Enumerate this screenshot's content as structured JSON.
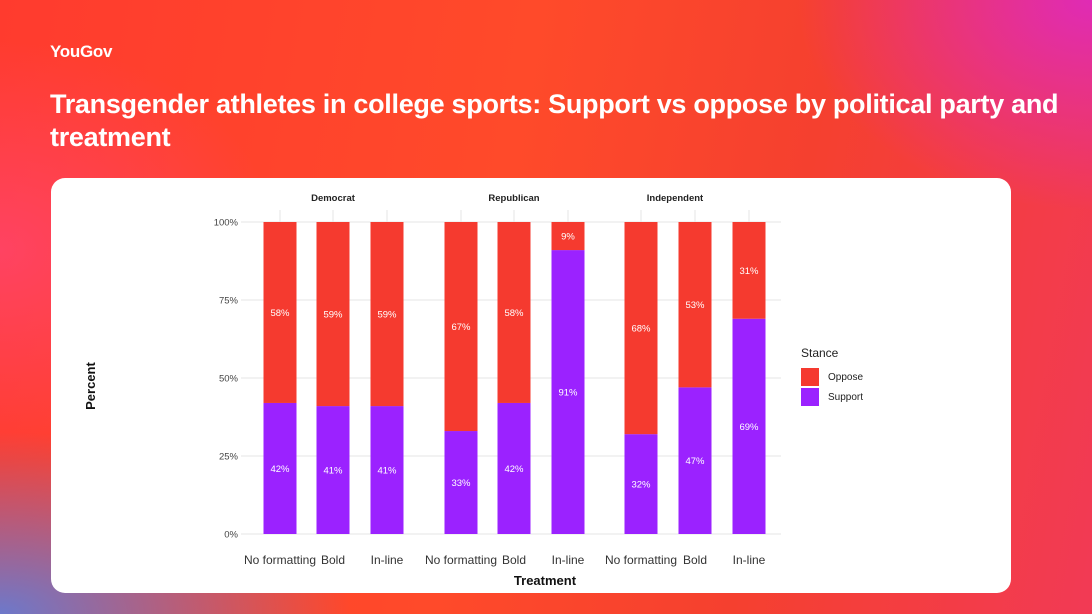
{
  "brand": {
    "logo_text": "YouGov"
  },
  "header": {
    "title": "Transgender athletes in college sports: Support vs oppose by political party and treatment"
  },
  "colors": {
    "oppose": "#f53a2f",
    "support": "#9b22ff",
    "grid": "#e6e6e6"
  },
  "chart_data": {
    "type": "bar",
    "stacked": true,
    "xlabel": "Treatment",
    "ylabel": "Percent",
    "ylim": [
      0,
      100
    ],
    "y_ticks": [
      "0%",
      "25%",
      "50%",
      "75%",
      "100%"
    ],
    "facets": [
      "Democrat",
      "Republican",
      "Independent"
    ],
    "categories": [
      "No formatting",
      "Bold",
      "In-line"
    ],
    "legend": {
      "title": "Stance",
      "entries": [
        "Oppose",
        "Support"
      ],
      "position": "right"
    },
    "series": [
      {
        "name": "Support",
        "values": {
          "Democrat": [
            42,
            41,
            41
          ],
          "Republican": [
            33,
            42,
            91
          ],
          "Independent": [
            32,
            47,
            69
          ]
        },
        "labels": {
          "Democrat": [
            "42%",
            "41%",
            "41%"
          ],
          "Republican": [
            "33%",
            "42%",
            "91%"
          ],
          "Independent": [
            "32%",
            "47%",
            "69%"
          ]
        }
      },
      {
        "name": "Oppose",
        "values": {
          "Democrat": [
            58,
            59,
            59
          ],
          "Republican": [
            67,
            58,
            9
          ],
          "Independent": [
            68,
            53,
            31
          ]
        },
        "labels": {
          "Democrat": [
            "58%",
            "59%",
            "59%"
          ],
          "Republican": [
            "67%",
            "58%",
            "9%"
          ],
          "Independent": [
            "68%",
            "53%",
            "31%"
          ]
        }
      }
    ]
  }
}
